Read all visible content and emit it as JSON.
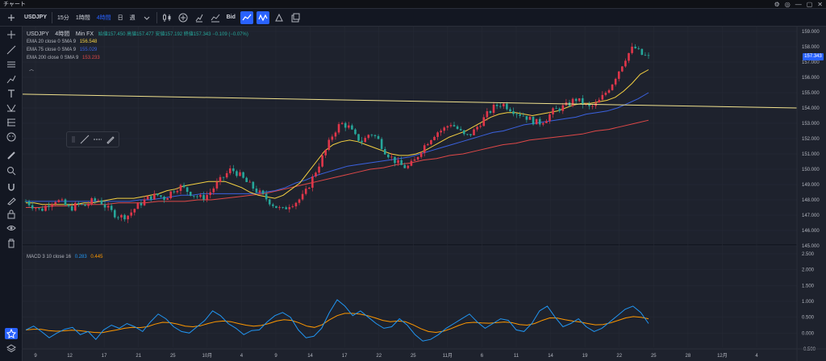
{
  "window": {
    "title": "チャート"
  },
  "toolbar": {
    "symbol": "USDJPY",
    "intervals": [
      "15分",
      "1時間",
      "4時間",
      "日",
      "週"
    ],
    "active_interval": "4時間",
    "bid_label": "Bid"
  },
  "legend": {
    "symbol": "USDJPY",
    "interval": "4時間",
    "source": "Min FX",
    "ohlc": "始値157.450 高値157.477 安値157.192 終値157.343 −0.109 (−0.07%)",
    "ema20": {
      "label": "EMA 20 close 0 SMA 9",
      "value": "156.548",
      "color": "#f5d142"
    },
    "ema75": {
      "label": "EMA 75 close 0 SMA 9",
      "value": "155.029",
      "color": "#3b62e0"
    },
    "ema200": {
      "label": "EMA 200 close 0 SMA 9",
      "value": "153.233",
      "color": "#e04848"
    },
    "macd": {
      "label": "MACD 3 10 close 16",
      "macd_value": "0.283",
      "signal_value": "0.445",
      "macd_color": "#2196f3",
      "signal_color": "#ff9800"
    }
  },
  "price_tag": "157.343",
  "colors": {
    "up": "#e0364a",
    "down": "#26a69a",
    "bg": "#1e222d",
    "grid": "#262a35",
    "trendline": "#f1e28e"
  },
  "chart_data": {
    "type": "candlestick",
    "price_axis": [
      "159.000",
      "158.000",
      "157.000",
      "156.000",
      "155.000",
      "154.000",
      "153.000",
      "152.000",
      "151.000",
      "150.000",
      "149.000",
      "148.000",
      "147.000",
      "146.000",
      "145.000"
    ],
    "price_range": [
      145.0,
      159.0
    ],
    "macd_axis": [
      "2.500",
      "2.000",
      "1.500",
      "1.000",
      "0.500",
      "0.000",
      "-0.500"
    ],
    "macd_range": [
      -0.5,
      2.5
    ],
    "x_labels": [
      "9",
      "12",
      "17",
      "21",
      "25",
      "10月",
      "4",
      "9",
      "14",
      "17",
      "22",
      "25",
      "11月",
      "6",
      "11",
      "14",
      "19",
      "22",
      "25",
      "28",
      "12月",
      "4"
    ],
    "close_path": [
      147.9,
      147.6,
      147.3,
      147.7,
      148.0,
      147.8,
      147.4,
      147.7,
      147.6,
      147.9,
      148.0,
      147.5,
      147.1,
      146.9,
      147.0,
      147.5,
      147.9,
      148.2,
      148.3,
      148.1,
      148.6,
      148.9,
      148.6,
      148.3,
      148.1,
      148.4,
      149.0,
      149.5,
      150.0,
      149.7,
      149.2,
      148.8,
      148.4,
      148.0,
      147.6,
      147.3,
      147.7,
      147.9,
      148.3,
      149.3,
      150.3,
      151.3,
      152.4,
      153.0,
      152.8,
      152.1,
      151.8,
      152.4,
      152.0,
      151.2,
      150.7,
      150.3,
      150.1,
      150.5,
      151.3,
      151.9,
      152.4,
      152.6,
      153.0,
      152.6,
      152.1,
      152.4,
      153.0,
      153.6,
      154.1,
      154.3,
      154.0,
      153.7,
      153.5,
      153.2,
      153.0,
      153.3,
      153.8,
      154.0,
      154.2,
      154.6,
      154.3,
      154.0,
      154.3,
      154.9,
      155.6,
      156.5,
      157.4,
      158.0,
      157.5,
      157.3
    ],
    "ema20": [
      147.8,
      147.8,
      147.7,
      147.7,
      147.7,
      147.7,
      147.7,
      147.8,
      147.8,
      147.9,
      148.0,
      148.1,
      148.1,
      148.1,
      148.2,
      148.3,
      148.4,
      148.6,
      148.7,
      148.9,
      149.0,
      149.1,
      149.2,
      149.2,
      149.2,
      149.0,
      148.8,
      148.5,
      148.3,
      148.2,
      148.1,
      148.3,
      148.7,
      149.1,
      149.8,
      150.5,
      151.2,
      151.6,
      151.8,
      151.9,
      151.8,
      151.6,
      151.4,
      151.2,
      151.0,
      150.9,
      150.9,
      151.0,
      151.2,
      151.5,
      151.8,
      152.1,
      152.3,
      152.5,
      152.8,
      153.1,
      153.4,
      153.6,
      153.7,
      153.7,
      153.6,
      153.5,
      153.6,
      153.7,
      153.8,
      154.0,
      154.2,
      154.3,
      154.3,
      154.4,
      154.5,
      154.7,
      155.1,
      155.6,
      156.2,
      156.5
    ],
    "ema75": [
      147.9,
      147.9,
      147.9,
      147.9,
      147.9,
      147.9,
      147.9,
      147.9,
      147.9,
      147.9,
      147.9,
      148.0,
      148.0,
      148.1,
      148.2,
      148.3,
      148.3,
      148.4,
      148.4,
      148.4,
      148.4,
      148.4,
      148.4,
      148.5,
      148.6,
      148.8,
      149.1,
      149.3,
      149.6,
      149.8,
      150.0,
      150.2,
      150.3,
      150.4,
      150.5,
      150.6,
      150.7,
      150.8,
      151.0,
      151.2,
      151.4,
      151.6,
      151.8,
      152.0,
      152.2,
      152.4,
      152.5,
      152.7,
      152.9,
      153.0,
      153.1,
      153.2,
      153.3,
      153.4,
      153.6,
      153.7,
      153.8,
      154.0,
      154.3,
      154.6,
      155.0
    ],
    "ema200": [
      147.5,
      147.5,
      147.6,
      147.6,
      147.7,
      147.7,
      147.7,
      147.8,
      147.8,
      147.8,
      147.9,
      147.9,
      147.9,
      148.0,
      148.0,
      148.1,
      148.2,
      148.3,
      148.4,
      148.6,
      148.8,
      149.0,
      149.2,
      149.4,
      149.6,
      149.8,
      150.0,
      150.1,
      150.3,
      150.4,
      150.6,
      150.7,
      150.9,
      151.0,
      151.2,
      151.4,
      151.6,
      151.7,
      151.9,
      152.0,
      152.1,
      152.2,
      152.3,
      152.5,
      152.6,
      152.8,
      153.0,
      153.2
    ],
    "trendline": [
      [
        0.0,
        154.9
      ],
      [
        1.0,
        154.0
      ]
    ],
    "macd_line": [
      0.1,
      0.22,
      0.05,
      -0.15,
      0.0,
      0.12,
      0.18,
      -0.05,
      0.05,
      -0.2,
      0.1,
      0.25,
      0.15,
      0.3,
      0.2,
      0.05,
      0.35,
      0.6,
      0.45,
      0.2,
      0.05,
      0.0,
      0.2,
      0.4,
      0.7,
      0.55,
      0.3,
      0.15,
      -0.05,
      0.08,
      0.1,
      0.35,
      0.55,
      0.65,
      0.5,
      0.1,
      -0.15,
      -0.1,
      0.15,
      0.65,
      1.05,
      0.85,
      0.55,
      0.7,
      0.5,
      0.3,
      0.15,
      0.2,
      0.45,
      0.25,
      -0.05,
      -0.25,
      -0.2,
      -0.05,
      0.15,
      0.3,
      0.45,
      0.6,
      0.35,
      0.15,
      0.3,
      0.45,
      0.4,
      0.1,
      0.05,
      0.3,
      0.7,
      0.85,
      0.5,
      0.2,
      0.3,
      0.45,
      0.2,
      0.05,
      0.15,
      0.35,
      0.55,
      0.75,
      0.85,
      0.65,
      0.3
    ],
    "signal_line": [
      0.1,
      0.12,
      0.12,
      0.08,
      0.06,
      0.07,
      0.09,
      0.08,
      0.05,
      0.02,
      0.01,
      0.06,
      0.1,
      0.15,
      0.18,
      0.17,
      0.2,
      0.28,
      0.34,
      0.33,
      0.28,
      0.22,
      0.2,
      0.23,
      0.3,
      0.36,
      0.38,
      0.36,
      0.3,
      0.25,
      0.22,
      0.24,
      0.3,
      0.38,
      0.42,
      0.4,
      0.32,
      0.22,
      0.18,
      0.26,
      0.42,
      0.55,
      0.62,
      0.62,
      0.6,
      0.55,
      0.48,
      0.4,
      0.36,
      0.38,
      0.36,
      0.26,
      0.14,
      0.05,
      0.02,
      0.06,
      0.14,
      0.24,
      0.32,
      0.34,
      0.32,
      0.31,
      0.33,
      0.35,
      0.33,
      0.27,
      0.25,
      0.3,
      0.4,
      0.48,
      0.47,
      0.42,
      0.38,
      0.35,
      0.3,
      0.26,
      0.27,
      0.32,
      0.4,
      0.48,
      0.52,
      0.5,
      0.45
    ]
  }
}
